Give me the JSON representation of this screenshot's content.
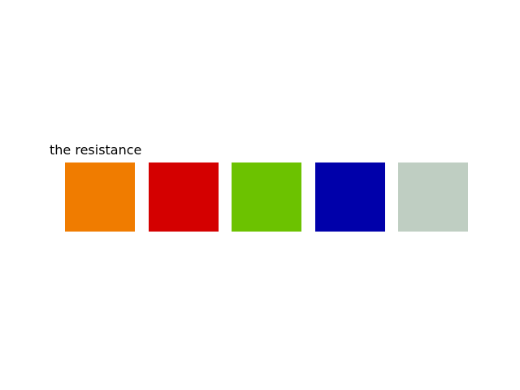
{
  "palette": {
    "title": "the resistance",
    "colors": [
      "#F07C00",
      "#D40000",
      "#6CC200",
      "#0000AA",
      "#BFCEC2"
    ]
  }
}
